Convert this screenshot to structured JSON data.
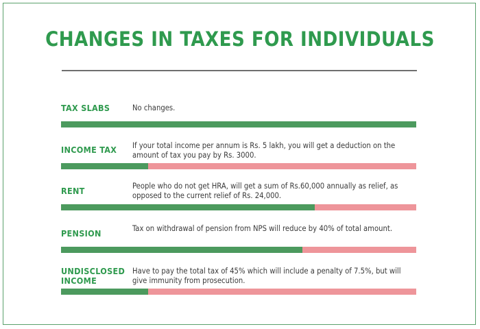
{
  "title": "CHANGES IN TAXES FOR INDIVIDUALS",
  "colors": {
    "green": "#4c9a5e",
    "title_green": "#2f9a4e",
    "pink": "#ee959a",
    "border": "#5aa06c"
  },
  "rows": [
    {
      "label": "TAX SLABS",
      "text": "No changes.",
      "bar_fill": 1.0
    },
    {
      "label": "INCOME TAX",
      "text": "If your total income per annum is Rs. 5 lakh, you will get a deduction on the amount of tax you pay by Rs. 3000.",
      "bar_fill": 0.245
    },
    {
      "label": "RENT",
      "text": "People who do not get HRA, will get a sum of Rs.60,000 annually as relief, as opposed to the current relief of Rs. 24,000.",
      "bar_fill": 0.715
    },
    {
      "label": "PENSION",
      "text": "Tax on withdrawal of pension from NPS will reduce by 40% of total amount.",
      "bar_fill": 0.68
    },
    {
      "label": "UNDISCLOSED INCOME",
      "text": "Have to pay the total tax of 45% which will include a penalty of 7.5%, but will give immunity from prosecution.",
      "bar_fill": 0.245
    }
  ]
}
